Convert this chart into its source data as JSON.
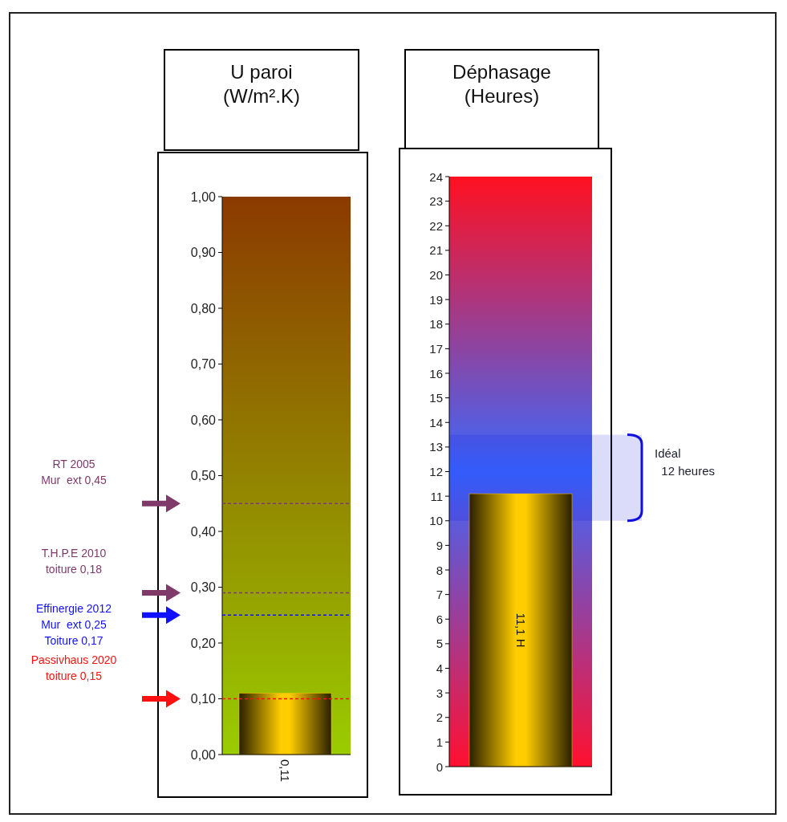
{
  "chart_data": [
    {
      "type": "bar",
      "title": "U paroi\n(W/m².K)",
      "categories": [
        null
      ],
      "values": [
        0.11
      ],
      "color": "#ffcc00",
      "value_labels": [
        "0,11"
      ],
      "ylim": [
        0,
        1
      ],
      "yticks": [
        {
          "value": 0,
          "label": "0,00"
        },
        {
          "value": 0.1,
          "label": "0,10"
        },
        {
          "value": 0.2,
          "label": "0,20"
        },
        {
          "value": 0.3,
          "label": "0,30"
        },
        {
          "value": 0.4,
          "label": "0,40"
        },
        {
          "value": 0.5,
          "label": "0,50"
        },
        {
          "value": 0.6,
          "label": "0,60"
        },
        {
          "value": 0.7,
          "label": "0,70"
        },
        {
          "value": 0.8,
          "label": "0,80"
        },
        {
          "value": 0.9,
          "label": "0,90"
        },
        {
          "value": 1,
          "label": "1,00"
        }
      ],
      "ref_lines": [
        {
          "axis": "y",
          "value": 0.45,
          "label": "RT 2005\nMur  ext 0,45",
          "color": "#7f3a6a"
        },
        {
          "axis": "y",
          "value": 0.29,
          "label": "T.H.P.E 2010\ntoiture 0,18",
          "color": "#7f3a6a"
        },
        {
          "axis": "y",
          "value": 0.25,
          "label": "Effinergie 2012\nMur  ext 0,25\nToiture 0,17",
          "color": "#1010ff"
        },
        {
          "axis": "y",
          "value": 0.1,
          "label": "Passivhaus 2020\ntoiture 0,15",
          "color": "#ff1010"
        }
      ]
    },
    {
      "type": "bar",
      "title": "Déphasage\n(Heures)",
      "categories": [
        null
      ],
      "values": [
        11.1
      ],
      "color": "#ffcc00",
      "value_labels": [
        "11,1 H"
      ],
      "ylim": [
        0,
        24
      ],
      "yticks": [
        0,
        1,
        2,
        3,
        4,
        5,
        6,
        7,
        8,
        9,
        10,
        11,
        12,
        13,
        14,
        15,
        16,
        17,
        18,
        19,
        20,
        21,
        22,
        23,
        24
      ],
      "bands": [
        {
          "axis": "y",
          "from": 10,
          "to": 13.5,
          "label": "Idéal\n  12 heures",
          "color": "#1010dd"
        }
      ]
    }
  ]
}
